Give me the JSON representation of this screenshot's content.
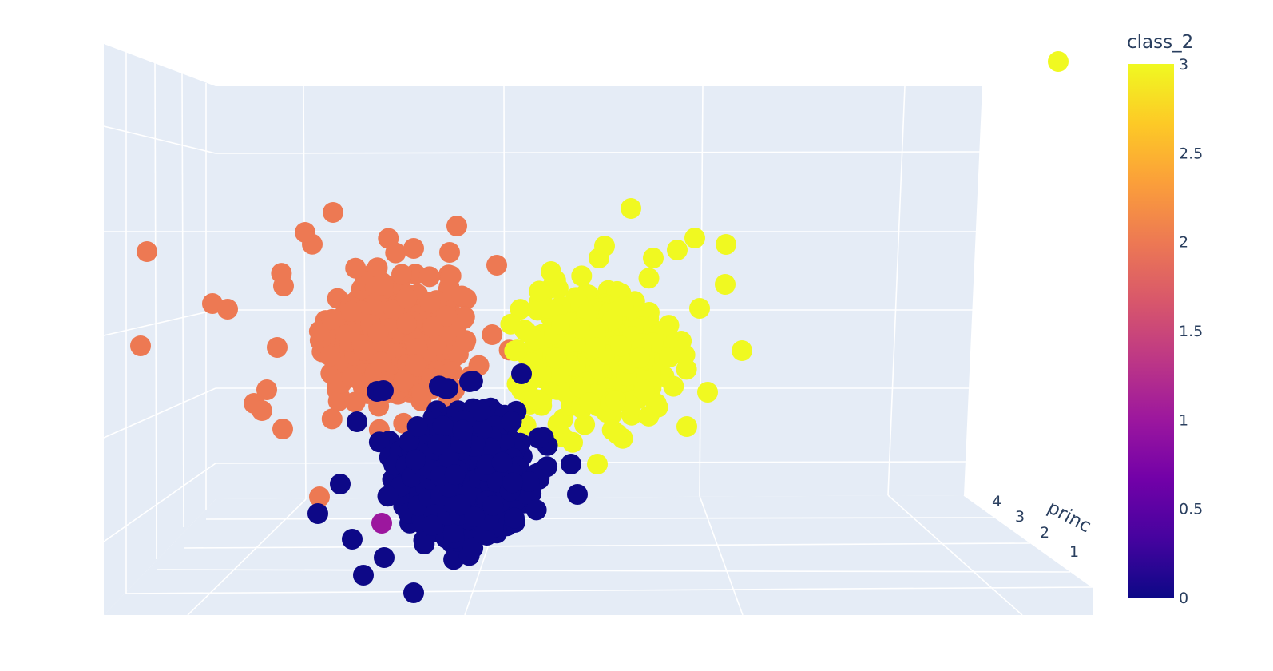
{
  "chart_data": {
    "type": "scatter",
    "subtype": "3d-scatter",
    "color_variable": "class_2",
    "colorbar": {
      "title": "class_2",
      "range": [
        0,
        3
      ],
      "ticks": [
        "0",
        "0.5",
        "1",
        "1.5",
        "2",
        "2.5",
        "3"
      ],
      "colorscale": [
        "#0d0887",
        "#46039f",
        "#7201a8",
        "#9c179e",
        "#bd3786",
        "#d8576b",
        "#ed7953",
        "#fb9f3a",
        "#fdca26",
        "#f0f921"
      ]
    },
    "visible_axis": {
      "label": "princ",
      "ticks": [
        "4",
        "3",
        "2",
        "1"
      ]
    },
    "grid": true,
    "background_color": "#e5ecf6",
    "classes": [
      {
        "value": 0,
        "color": "#0d0887",
        "approx_points": 1400
      },
      {
        "value": 1,
        "color": "#9c179e",
        "approx_points": 1
      },
      {
        "value": 2,
        "color": "#ed7953",
        "approx_points": 1200
      },
      {
        "value": 3,
        "color": "#f0f921",
        "approx_points": 900
      }
    ],
    "legend_marker": {
      "color": "#f0f921"
    }
  }
}
